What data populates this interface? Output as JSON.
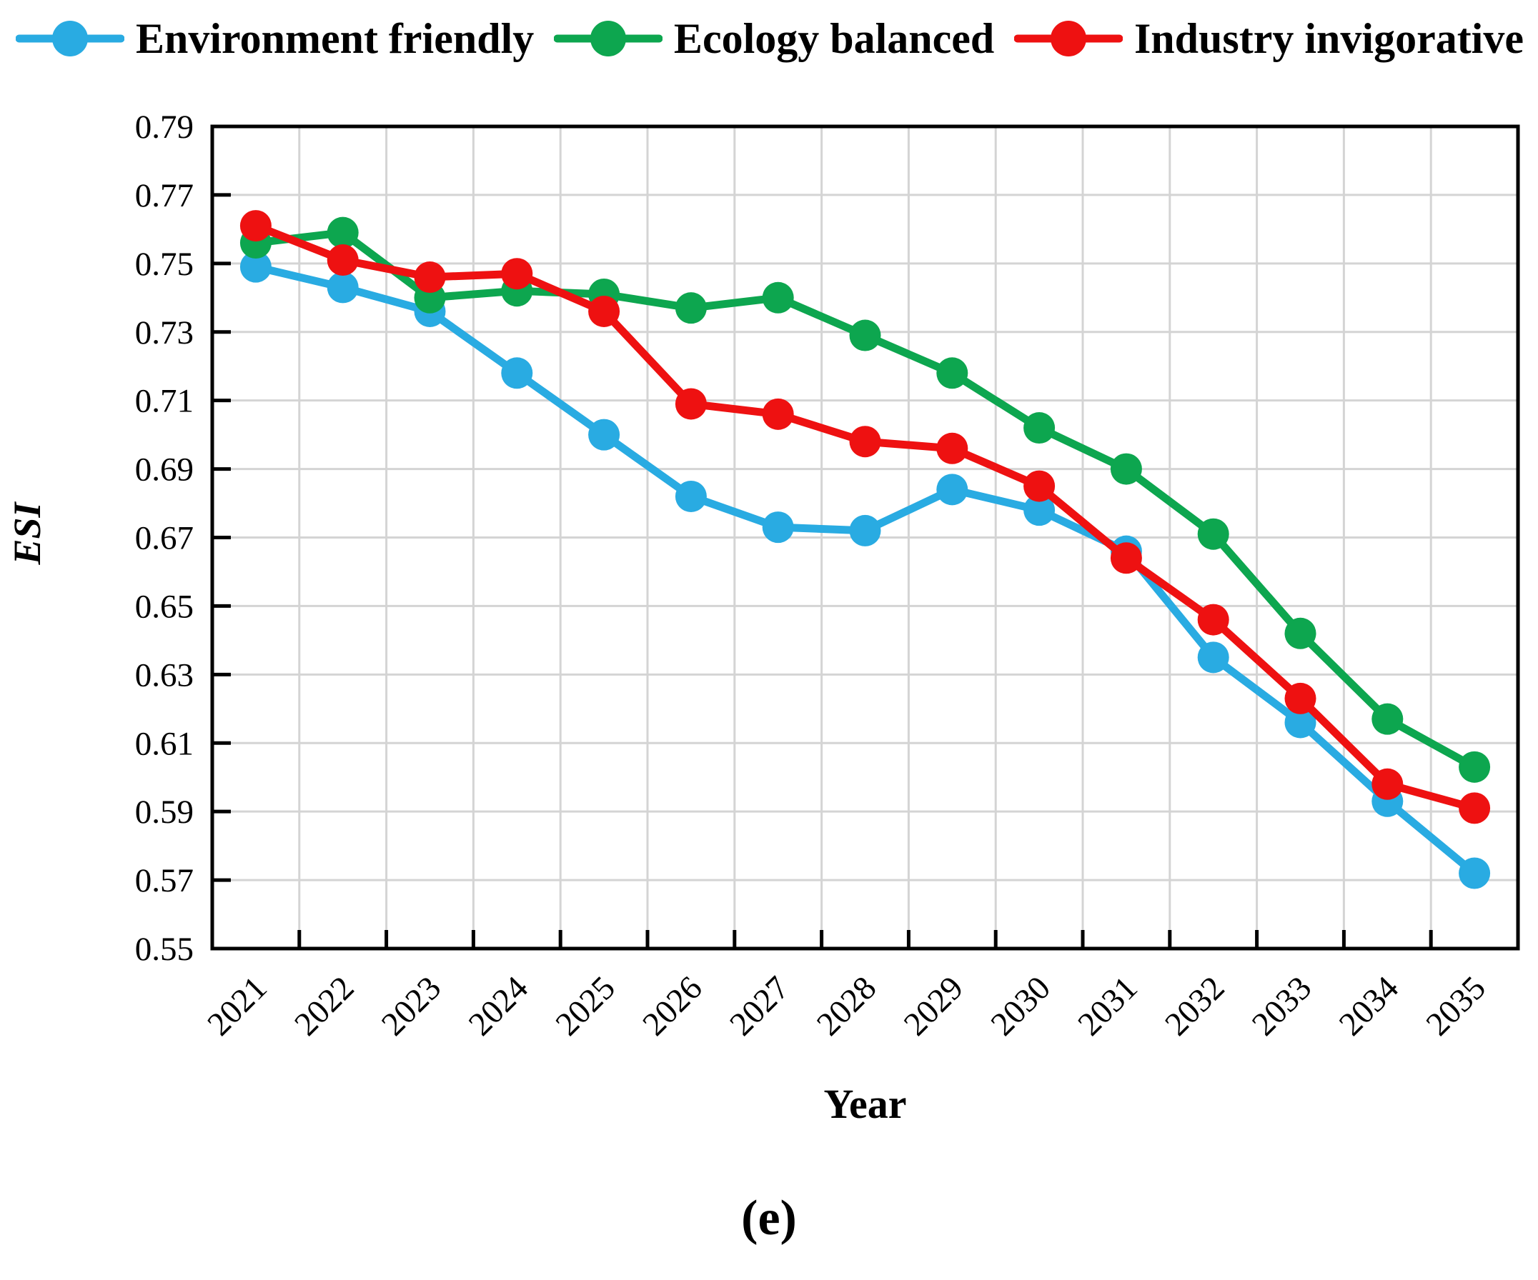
{
  "axes": {
    "x_label": "Year",
    "y_label": "ESI"
  },
  "caption": "(e)",
  "chart_data": {
    "type": "line",
    "title": "",
    "xlabel": "Year",
    "ylabel": "ESI",
    "categories": [
      "2021",
      "2022",
      "2023",
      "2024",
      "2025",
      "2026",
      "2027",
      "2028",
      "2029",
      "2030",
      "2031",
      "2032",
      "2033",
      "2034",
      "2035"
    ],
    "series": [
      {
        "name": "Environment friendly",
        "color": "#29ABE2",
        "values": [
          0.749,
          0.743,
          0.736,
          0.718,
          0.7,
          0.682,
          0.673,
          0.672,
          0.684,
          0.678,
          0.666,
          0.635,
          0.616,
          0.593,
          0.572
        ]
      },
      {
        "name": "Ecology balanced",
        "color": "#0DA64F",
        "values": [
          0.756,
          0.759,
          0.74,
          0.742,
          0.741,
          0.737,
          0.74,
          0.729,
          0.718,
          0.702,
          0.69,
          0.671,
          0.642,
          0.617,
          0.603
        ]
      },
      {
        "name": "Industry invigorative",
        "color": "#EE1111",
        "values": [
          0.761,
          0.751,
          0.746,
          0.747,
          0.736,
          0.709,
          0.706,
          0.698,
          0.696,
          0.685,
          0.664,
          0.646,
          0.623,
          0.598,
          0.591
        ]
      }
    ],
    "ylim": [
      0.55,
      0.79
    ],
    "ytick_step": 0.02,
    "grid": true,
    "gridline_color": "#d4d4d4",
    "legend_position": "top"
  }
}
